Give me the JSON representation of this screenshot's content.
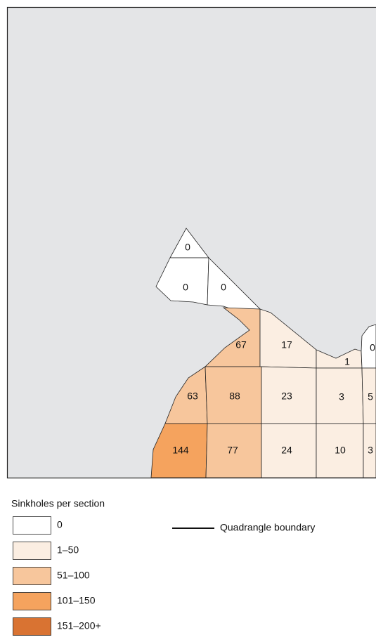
{
  "map": {
    "sections": [
      {
        "label": "0",
        "fill": "#ffffff"
      },
      {
        "label": "0",
        "fill": "#ffffff"
      },
      {
        "label": "0",
        "fill": "#ffffff"
      },
      {
        "label": "67",
        "fill": "#f7c69c"
      },
      {
        "label": "17",
        "fill": "#fbeee2"
      },
      {
        "label": "1",
        "fill": "#fbeee2"
      },
      {
        "label": "0",
        "fill": "#ffffff"
      },
      {
        "label": "63",
        "fill": "#f7c69c"
      },
      {
        "label": "88",
        "fill": "#f7c69c"
      },
      {
        "label": "23",
        "fill": "#fbeee2"
      },
      {
        "label": "3",
        "fill": "#fbeee2"
      },
      {
        "label": "5",
        "fill": "#fbeee2"
      },
      {
        "label": "144",
        "fill": "#f5a35e"
      },
      {
        "label": "77",
        "fill": "#f7c69c"
      },
      {
        "label": "24",
        "fill": "#fbeee2"
      },
      {
        "label": "10",
        "fill": "#fbeee2"
      },
      {
        "label": "3",
        "fill": "#fbeee2"
      }
    ]
  },
  "legend": {
    "title": "Sinkholes per section",
    "items": [
      {
        "label": "0",
        "color": "#ffffff"
      },
      {
        "label": "1–50",
        "color": "#fbeee2"
      },
      {
        "label": "51–100",
        "color": "#f7c69c"
      },
      {
        "label": "101–150",
        "color": "#f5a35e"
      },
      {
        "label": "151–200+",
        "color": "#d97332"
      }
    ],
    "boundary_label": "Quadrangle boundary"
  }
}
